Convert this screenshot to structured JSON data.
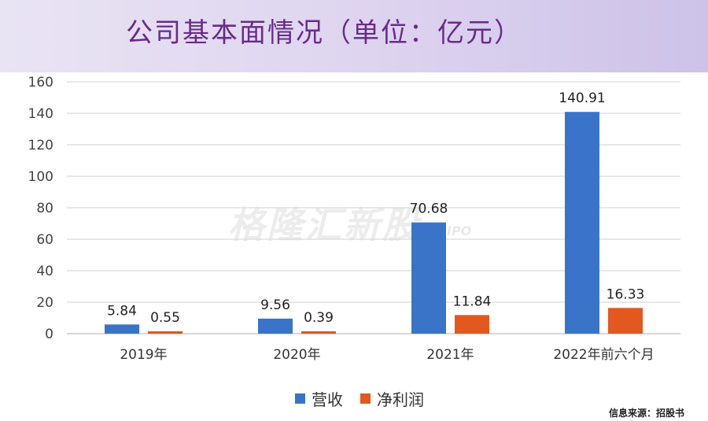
{
  "page": {
    "title": "公司基本面情况（单位：亿元）",
    "watermark": "格隆汇新股",
    "watermark_sub": "IPO",
    "source": "信息来源：招股书"
  },
  "colors": {
    "revenue": "#3a74c8",
    "net_profit": "#e2581f",
    "title": "#6a2a8c"
  },
  "chart_data": {
    "type": "bar",
    "title": "公司基本面情况（单位：亿元）",
    "categories": [
      "2019年",
      "2020年",
      "2021年",
      "2022年前六个月"
    ],
    "series": [
      {
        "name": "营收",
        "values": [
          5.84,
          9.56,
          70.68,
          140.91
        ],
        "labels": [
          "5.84",
          "9.56",
          "70.68",
          "140.91"
        ]
      },
      {
        "name": "净利润",
        "values": [
          0.55,
          0.39,
          11.84,
          16.33
        ],
        "labels": [
          "0.55",
          "0.39",
          "11.84",
          "16.33"
        ]
      }
    ],
    "ylim": [
      0,
      160
    ],
    "yticks": [
      "0",
      "20",
      "40",
      "60",
      "80",
      "100",
      "120",
      "140",
      "160"
    ],
    "grid": true,
    "legend_position": "bottom",
    "xlabel": "",
    "ylabel": ""
  }
}
